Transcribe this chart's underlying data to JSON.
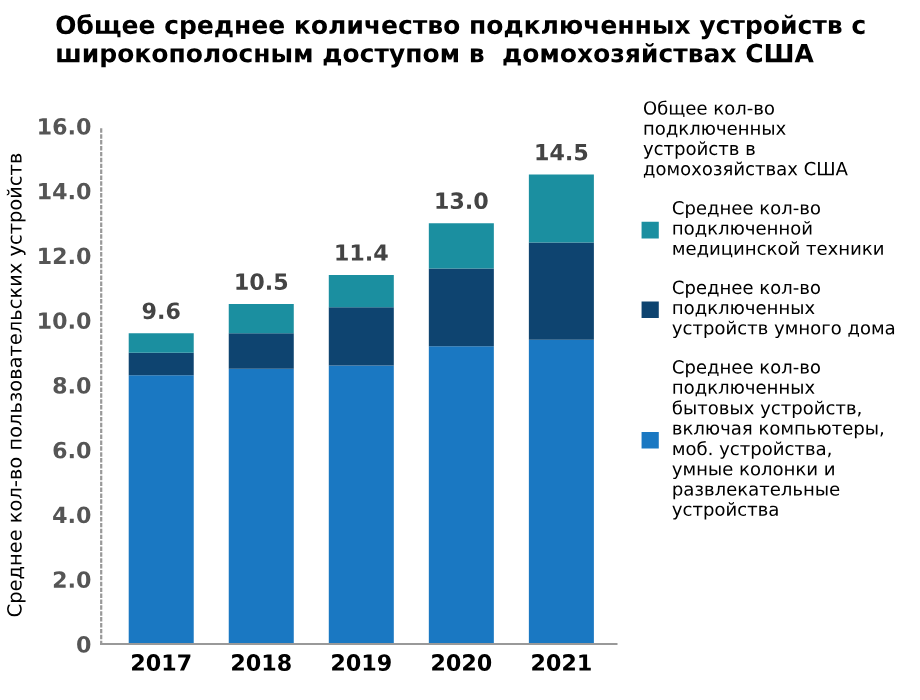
{
  "chart_data": {
    "type": "bar",
    "stacked": true,
    "title": "Общее среднее количество подключенных устройств с\nширокополосным доступом в  домохозяйствах США",
    "ylabel": "Среднее кол-во пользовательских устройств",
    "legend_title": "Общее кол-во\nподключенных\nустройств в\nдомохозяйствах США",
    "categories": [
      "2017",
      "2018",
      "2019",
      "2020",
      "2021"
    ],
    "series": [
      {
        "name": "Среднее кол-во\nподключенных\nбытовых устройств,\nвключая компьютеры,\nмоб. устройства,\nумные колонки и\nразвлекательные\nустройства",
        "color": "#1a78c2",
        "values": [
          8.3,
          8.5,
          8.6,
          9.2,
          9.4
        ]
      },
      {
        "name": "Среднее кол-во\nподключенных\nустройств умного дома",
        "color": "#0e4470",
        "values": [
          0.7,
          1.1,
          1.8,
          2.4,
          3.0
        ]
      },
      {
        "name": "Среднее кол-во\nподключенной\nмедицинской техники",
        "color": "#1b8fa0",
        "values": [
          0.6,
          0.9,
          1.0,
          1.4,
          2.1
        ]
      }
    ],
    "totals": [
      "9.6",
      "10.5",
      "11.4",
      "13.0",
      "14.5"
    ],
    "ylim": [
      0,
      16
    ],
    "yticks": [
      {
        "value": 0,
        "label": "0"
      },
      {
        "value": 2,
        "label": "2.0"
      },
      {
        "value": 4,
        "label": "4.0"
      },
      {
        "value": 6,
        "label": "6.0"
      },
      {
        "value": 8,
        "label": "8.0"
      },
      {
        "value": 10,
        "label": "10.0"
      },
      {
        "value": 12,
        "label": "12.0"
      },
      {
        "value": 14,
        "label": "14.0"
      },
      {
        "value": 16,
        "label": "16.0"
      }
    ],
    "grid": false,
    "legend": "right"
  }
}
